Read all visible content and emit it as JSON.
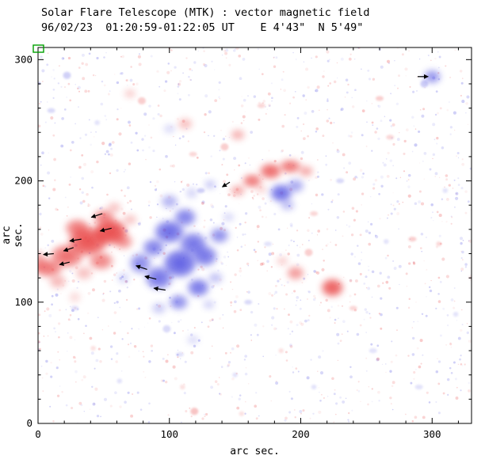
{
  "chart_data": {
    "type": "heatmap",
    "title": "Solar Flare Telescope (MTK) : vector magnetic field",
    "subtitle": "96/02/23  01:20:59-01:22:05 UT    E 4'43\"  N 5'49\"",
    "xlabel": "arc sec.",
    "ylabel": "arc sec.",
    "xlim": [
      0,
      330
    ],
    "ylim": [
      0,
      310
    ],
    "xticks": [
      0,
      100,
      200,
      300
    ],
    "yticks": [
      0,
      100,
      200,
      300
    ],
    "minor_tick_interval": 20,
    "grid": false,
    "legend": "none",
    "colors": {
      "positive": "#e84040",
      "negative": "#4848e0",
      "axis": "#000000",
      "vector": "#000000",
      "marker": "#00a000",
      "background": "#ffffff"
    },
    "blob_format": [
      "x_arcsec",
      "y_arcsec",
      "rx_arcsec",
      "ry_arcsec",
      "polarity P=positive-red N=negative-blue",
      "alpha"
    ],
    "blobs": [
      [
        8,
        128,
        10,
        7,
        "P",
        0.5
      ],
      [
        0,
        133,
        6,
        8,
        "P",
        0.45
      ],
      [
        22,
        138,
        12,
        9,
        "P",
        0.55
      ],
      [
        38,
        150,
        14,
        11,
        "P",
        0.7
      ],
      [
        55,
        158,
        12,
        10,
        "P",
        0.75
      ],
      [
        50,
        170,
        8,
        6,
        "P",
        0.45
      ],
      [
        30,
        161,
        9,
        7,
        "P",
        0.5
      ],
      [
        48,
        134,
        9,
        7,
        "P",
        0.45
      ],
      [
        65,
        150,
        7,
        6,
        "P",
        0.4
      ],
      [
        15,
        117,
        6,
        5,
        "P",
        0.35
      ],
      [
        35,
        124,
        6,
        5,
        "P",
        0.3
      ],
      [
        70,
        168,
        5,
        4,
        "P",
        0.3
      ],
      [
        58,
        178,
        5,
        4,
        "P",
        0.3
      ],
      [
        28,
        104,
        4,
        4,
        "P",
        0.2
      ],
      [
        152,
        192,
        5,
        4,
        "P",
        0.45
      ],
      [
        163,
        200,
        7,
        5,
        "P",
        0.55
      ],
      [
        177,
        208,
        8,
        6,
        "P",
        0.6
      ],
      [
        192,
        212,
        8,
        5,
        "P",
        0.55
      ],
      [
        204,
        208,
        5,
        4,
        "P",
        0.45
      ],
      [
        170,
        193,
        4,
        3,
        "P",
        0.25
      ],
      [
        224,
        112,
        8,
        7,
        "P",
        0.65
      ],
      [
        196,
        124,
        6,
        5,
        "P",
        0.5
      ],
      [
        186,
        134,
        4,
        3,
        "P",
        0.3
      ],
      [
        206,
        141,
        3,
        3,
        "P",
        0.25
      ],
      [
        70,
        272,
        4,
        3,
        "P",
        0.3
      ],
      [
        79,
        266,
        3,
        3,
        "P",
        0.25
      ],
      [
        112,
        247,
        5,
        4,
        "P",
        0.35
      ],
      [
        152,
        238,
        5,
        4,
        "P",
        0.4
      ],
      [
        142,
        228,
        3,
        3,
        "P",
        0.25
      ],
      [
        170,
        262,
        3,
        2,
        "P",
        0.2
      ],
      [
        260,
        268,
        3,
        2,
        "P",
        0.25
      ],
      [
        268,
        236,
        3,
        2,
        "P",
        0.2
      ],
      [
        118,
        222,
        3,
        2,
        "P",
        0.2
      ],
      [
        285,
        152,
        3,
        2,
        "P",
        0.25
      ],
      [
        210,
        173,
        3,
        2,
        "P",
        0.2
      ],
      [
        240,
        95,
        3,
        2,
        "P",
        0.2
      ],
      [
        119,
        10,
        3,
        3,
        "P",
        0.3
      ],
      [
        110,
        30,
        2,
        2,
        "P",
        0.15
      ],
      [
        185,
        60,
        2,
        2,
        "P",
        0.15
      ],
      [
        42,
        62,
        2,
        2,
        "P",
        0.15
      ],
      [
        305,
        148,
        2,
        2,
        "P",
        0.2
      ],
      [
        330,
        120,
        2,
        2,
        "P",
        0.15
      ],
      [
        155,
        8,
        2,
        2,
        "P",
        0.15
      ],
      [
        78,
        132,
        8,
        8,
        "N",
        0.45
      ],
      [
        92,
        120,
        10,
        9,
        "N",
        0.55
      ],
      [
        108,
        132,
        12,
        11,
        "N",
        0.65
      ],
      [
        118,
        148,
        10,
        9,
        "N",
        0.55
      ],
      [
        100,
        158,
        11,
        9,
        "N",
        0.6
      ],
      [
        112,
        170,
        8,
        7,
        "N",
        0.5
      ],
      [
        127,
        138,
        9,
        8,
        "N",
        0.55
      ],
      [
        138,
        155,
        7,
        6,
        "N",
        0.45
      ],
      [
        122,
        112,
        8,
        7,
        "N",
        0.55
      ],
      [
        107,
        100,
        7,
        6,
        "N",
        0.45
      ],
      [
        92,
        95,
        5,
        4,
        "N",
        0.3
      ],
      [
        88,
        145,
        8,
        7,
        "N",
        0.5
      ],
      [
        100,
        183,
        6,
        5,
        "N",
        0.4
      ],
      [
        117,
        190,
        4,
        4,
        "N",
        0.25
      ],
      [
        135,
        120,
        5,
        4,
        "N",
        0.35
      ],
      [
        65,
        120,
        4,
        4,
        "N",
        0.25
      ],
      [
        145,
        170,
        4,
        3,
        "N",
        0.25
      ],
      [
        130,
        98,
        4,
        3,
        "N",
        0.3
      ],
      [
        185,
        190,
        8,
        7,
        "N",
        0.6
      ],
      [
        196,
        196,
        6,
        5,
        "N",
        0.45
      ],
      [
        190,
        180,
        5,
        4,
        "N",
        0.35
      ],
      [
        131,
        197,
        4,
        3,
        "N",
        0.35
      ],
      [
        124,
        192,
        3,
        2,
        "N",
        0.25
      ],
      [
        300,
        286,
        6,
        5,
        "N",
        0.55
      ],
      [
        294,
        280,
        3,
        3,
        "N",
        0.25
      ],
      [
        22,
        287,
        3,
        3,
        "N",
        0.25
      ],
      [
        10,
        258,
        3,
        2,
        "N",
        0.2
      ],
      [
        45,
        248,
        2,
        2,
        "N",
        0.15
      ],
      [
        100,
        243,
        4,
        3,
        "N",
        0.25
      ],
      [
        118,
        69,
        4,
        3,
        "N",
        0.25
      ],
      [
        98,
        78,
        3,
        3,
        "N",
        0.2
      ],
      [
        108,
        57,
        3,
        2,
        "N",
        0.15
      ],
      [
        160,
        100,
        3,
        2,
        "N",
        0.2
      ],
      [
        230,
        200,
        3,
        2,
        "N",
        0.2
      ],
      [
        255,
        60,
        3,
        2,
        "N",
        0.15
      ],
      [
        290,
        30,
        3,
        2,
        "N",
        0.15
      ],
      [
        175,
        148,
        3,
        2,
        "N",
        0.15
      ],
      [
        28,
        95,
        3,
        2,
        "N",
        0.15
      ],
      [
        150,
        40,
        2,
        2,
        "N",
        0.15
      ],
      [
        62,
        35,
        2,
        2,
        "N",
        0.15
      ],
      [
        318,
        90,
        2,
        2,
        "N",
        0.15
      ],
      [
        310,
        192,
        2,
        2,
        "N",
        0.15
      ],
      [
        210,
        30,
        2,
        2,
        "N",
        0.15
      ],
      [
        265,
        150,
        2,
        2,
        "N",
        0.15
      ]
    ],
    "arrow_format": [
      "x_arcsec",
      "y_arcsec",
      "angle_deg_ccw_from_east",
      "length_arcsec"
    ],
    "arrows": [
      [
        49,
        173,
        200,
        9
      ],
      [
        56,
        161,
        195,
        9
      ],
      [
        33,
        152,
        190,
        9
      ],
      [
        27,
        145,
        200,
        8
      ],
      [
        12,
        140,
        185,
        8
      ],
      [
        24,
        133,
        195,
        8
      ],
      [
        83,
        127,
        160,
        9
      ],
      [
        90,
        119,
        165,
        9
      ],
      [
        97,
        110,
        170,
        9
      ],
      [
        146,
        199,
        215,
        7
      ],
      [
        289,
        286,
        0,
        8
      ]
    ],
    "noise": {
      "seed": 7,
      "count": 1400
    }
  }
}
